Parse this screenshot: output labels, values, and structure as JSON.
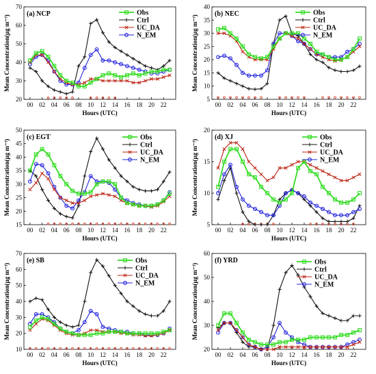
{
  "chart_data": [
    {
      "type": "line",
      "title": "(a) NCP",
      "xlabel": "Hours (UTC)",
      "ylabel": "Mean Concentration(µg m⁻³)",
      "ylim": [
        20,
        70
      ],
      "yticks": [
        20,
        30,
        40,
        50,
        60,
        70
      ],
      "xticks": [
        0,
        2,
        4,
        6,
        8,
        10,
        12,
        14,
        16,
        18,
        20,
        22
      ],
      "xtick_labels": [
        "00",
        "02",
        "04",
        "06",
        "08",
        "10",
        "12",
        "14",
        "16",
        "18",
        "20",
        "22"
      ],
      "x": [
        0,
        1,
        2,
        3,
        4,
        5,
        6,
        7,
        8,
        9,
        10,
        11,
        12,
        13,
        14,
        15,
        16,
        17,
        18,
        19,
        20,
        21,
        22,
        23
      ],
      "series": [
        {
          "name": "Obs",
          "values": [
            41,
            45,
            46,
            43,
            38,
            33,
            30,
            29,
            27,
            27,
            29,
            31,
            33,
            34,
            33,
            32,
            33,
            34,
            33,
            34,
            35,
            35,
            36,
            36
          ]
        },
        {
          "name": "Ctrl",
          "values": [
            37,
            35,
            30,
            27,
            25,
            24,
            23,
            24,
            38,
            43,
            61,
            63,
            56,
            51,
            48,
            46,
            44,
            42,
            40,
            38,
            37,
            36,
            38,
            41
          ]
        },
        {
          "name": "UC_DA",
          "values": [
            40,
            44,
            44,
            40,
            35,
            31,
            29,
            28,
            28,
            29,
            31,
            31,
            30,
            30,
            30,
            30,
            30,
            29,
            29,
            30,
            31,
            31,
            32,
            33
          ]
        },
        {
          "name": "N_EM",
          "values": [
            39,
            43,
            44,
            41,
            35,
            30,
            28,
            28,
            29,
            37,
            44,
            47,
            41,
            41,
            40,
            39,
            38,
            37,
            36,
            35,
            34,
            34,
            35,
            36
          ]
        }
      ],
      "markers_y": 20.8,
      "markers_x": [
        3,
        4,
        5,
        6,
        7,
        10,
        11,
        12,
        13,
        14
      ]
    },
    {
      "type": "line",
      "title": "(b) NEC",
      "xlabel": "Hours (UTC)",
      "ylabel": "Mean Concentration(µg m⁻³)",
      "ylim": [
        5,
        40
      ],
      "yticks": [
        5,
        10,
        15,
        20,
        25,
        30,
        35,
        40
      ],
      "xticks": [
        0,
        2,
        4,
        6,
        8,
        10,
        12,
        14,
        16,
        18,
        20,
        22
      ],
      "xtick_labels": [
        "00",
        "02",
        "04",
        "06",
        "08",
        "10",
        "12",
        "14",
        "16",
        "18",
        "20",
        "22"
      ],
      "x": [
        0,
        1,
        2,
        3,
        4,
        5,
        6,
        7,
        8,
        9,
        10,
        11,
        12,
        13,
        14,
        15,
        16,
        17,
        18,
        19,
        20,
        21,
        22,
        23
      ],
      "series": [
        {
          "name": "Obs",
          "values": [
            31.5,
            32,
            30,
            28,
            25,
            22,
            21,
            20.5,
            21,
            25,
            28,
            30,
            30,
            30,
            28,
            26,
            23,
            22,
            21,
            20,
            20,
            21,
            24,
            28
          ]
        },
        {
          "name": "Ctrl",
          "values": [
            15,
            13,
            12,
            11,
            10,
            9,
            8.8,
            9,
            11,
            26,
            35,
            36.5,
            30,
            29,
            26,
            22,
            20,
            19,
            17,
            16,
            15.5,
            15.5,
            16,
            17.5
          ]
        },
        {
          "name": "UC_DA",
          "values": [
            30,
            30,
            29,
            27,
            23,
            21,
            20,
            20,
            20,
            24,
            28,
            30,
            29,
            28,
            26,
            24,
            22,
            21,
            20,
            19.5,
            20,
            21,
            23,
            25
          ]
        },
        {
          "name": "N_EM",
          "values": [
            21,
            21.5,
            20.5,
            18,
            15,
            14,
            14,
            14,
            16,
            26,
            30,
            30,
            29,
            27,
            26,
            24,
            22,
            22,
            21,
            21,
            21,
            23,
            24,
            26
          ]
        }
      ],
      "markers_y": 5.7,
      "markers_x": [
        0,
        1,
        2,
        3,
        4,
        5,
        6,
        7,
        10,
        11,
        12,
        13,
        14,
        17,
        18,
        19,
        20,
        21,
        22,
        23
      ]
    },
    {
      "type": "line",
      "title": "(c) EGT",
      "xlabel": "Hours (UTC)",
      "ylabel": "Mean Concentration(µg m⁻³)",
      "ylim": [
        15,
        50
      ],
      "yticks": [
        15,
        20,
        25,
        30,
        35,
        40,
        45,
        50
      ],
      "xticks": [
        0,
        2,
        4,
        6,
        8,
        10,
        12,
        14,
        16,
        18,
        20,
        22
      ],
      "xtick_labels": [
        "00",
        "02",
        "04",
        "06",
        "08",
        "10",
        "12",
        "14",
        "16",
        "18",
        "20",
        "22"
      ],
      "x": [
        0,
        1,
        2,
        3,
        4,
        5,
        6,
        7,
        8,
        9,
        10,
        11,
        12,
        13,
        14,
        15,
        16,
        17,
        18,
        19,
        20,
        21,
        22,
        23
      ],
      "series": [
        {
          "name": "Obs",
          "values": [
            35,
            41,
            43,
            41,
            37,
            33,
            30,
            27.5,
            26.5,
            26.5,
            27,
            30,
            31,
            31,
            30,
            25,
            23,
            22.5,
            22,
            22,
            22,
            22.5,
            24,
            26.5
          ]
        },
        {
          "name": "Ctrl",
          "values": [
            35,
            33,
            28,
            24,
            21,
            19,
            18,
            17.5,
            22,
            33,
            42,
            47,
            43,
            39,
            36,
            33,
            31,
            29,
            28,
            27.5,
            27.5,
            28,
            31,
            34.5
          ]
        },
        {
          "name": "UC_DA",
          "values": [
            28,
            30.5,
            34,
            32,
            28,
            25,
            24,
            23,
            23,
            24,
            25.5,
            26,
            26.5,
            26,
            25.5,
            24,
            23,
            22.5,
            22,
            22,
            21.5,
            22,
            23.5,
            25.5
          ]
        },
        {
          "name": "N_EM",
          "values": [
            31,
            37.5,
            37,
            34,
            29,
            25,
            22,
            21,
            24,
            27,
            33,
            31,
            31,
            30.5,
            28,
            25,
            24,
            23,
            22.5,
            22,
            22,
            22.5,
            24,
            27
          ]
        }
      ],
      "markers_y": 15.3,
      "markers_x": [
        3,
        4,
        5,
        6,
        7,
        8,
        9,
        10,
        11,
        12,
        13,
        14,
        15,
        16,
        17,
        18,
        19,
        20,
        21,
        22,
        23
      ]
    },
    {
      "type": "line",
      "title": "(d) XJ",
      "xlabel": "Hours (UTC)",
      "ylabel": "Mean Concentration(µg m⁻³)",
      "ylim": [
        5,
        20
      ],
      "yticks": [
        5,
        10,
        15,
        20
      ],
      "xticks": [
        0,
        2,
        4,
        6,
        8,
        10,
        12,
        14,
        16,
        18,
        20,
        22
      ],
      "xtick_labels": [
        "00",
        "02",
        "04",
        "06",
        "08",
        "10",
        "12",
        "14",
        "16",
        "18",
        "20",
        "22"
      ],
      "x": [
        0,
        1,
        2,
        3,
        4,
        5,
        6,
        7,
        8,
        9,
        10,
        11,
        12,
        13,
        14,
        15,
        16,
        17,
        18,
        19,
        20,
        21,
        22,
        23
      ],
      "series": [
        {
          "name": "Obs",
          "values": [
            11,
            15,
            17,
            17,
            15,
            13,
            12.5,
            11,
            10,
            9,
            8.5,
            9,
            10,
            14,
            15,
            13.5,
            13,
            11,
            10,
            9,
            8.5,
            8.5,
            9,
            10
          ]
        },
        {
          "name": "Ctrl",
          "values": [
            9,
            12,
            14,
            10,
            7,
            5.5,
            5,
            5,
            5,
            6.5,
            9,
            10,
            10.5,
            10,
            9,
            8,
            7,
            6,
            5.5,
            5.5,
            5.5,
            5.5,
            6,
            8
          ]
        },
        {
          "name": "UC_DA",
          "values": [
            14,
            17,
            18,
            18,
            17,
            15,
            14,
            13,
            12,
            12.5,
            14,
            14,
            14.5,
            15,
            15,
            14.5,
            14,
            13.5,
            13,
            12.5,
            12,
            12,
            12.5,
            13
          ]
        },
        {
          "name": "N_EM",
          "values": [
            10,
            13,
            14.5,
            11,
            9,
            8,
            7.5,
            7,
            6.5,
            6.5,
            8,
            10,
            10.5,
            10,
            9.5,
            8.5,
            8,
            7.5,
            7,
            6.5,
            6.5,
            6.5,
            7,
            7.5
          ]
        }
      ],
      "markers_y": 5.1,
      "markers_x": [
        4,
        5,
        6,
        7,
        8,
        9,
        15,
        16,
        17,
        18,
        19,
        20,
        21,
        22
      ]
    },
    {
      "type": "line",
      "title": "(e) SB",
      "xlabel": "Hours (UTC)",
      "ylabel": "Mean Concentration(µg m⁻³)",
      "ylim": [
        10,
        70
      ],
      "yticks": [
        10,
        20,
        30,
        40,
        50,
        60,
        70
      ],
      "xticks": [
        0,
        2,
        4,
        6,
        8,
        10,
        12,
        14,
        16,
        18,
        20,
        22
      ],
      "xtick_labels": [
        "00",
        "02",
        "04",
        "06",
        "08",
        "10",
        "12",
        "14",
        "16",
        "18",
        "20",
        "22"
      ],
      "x": [
        0,
        1,
        2,
        3,
        4,
        5,
        6,
        7,
        8,
        9,
        10,
        11,
        12,
        13,
        14,
        15,
        16,
        17,
        18,
        19,
        20,
        21,
        22,
        23
      ],
      "series": [
        {
          "name": "Obs",
          "values": [
            24,
            28,
            30,
            29,
            26,
            23,
            21,
            20,
            19,
            19,
            19,
            20,
            20,
            21,
            21,
            21,
            20,
            20,
            20,
            20,
            20,
            20,
            21,
            22
          ]
        },
        {
          "name": "Ctrl",
          "values": [
            40,
            42,
            41,
            35,
            30,
            27,
            25,
            24,
            25,
            40,
            58,
            66,
            62,
            56,
            50,
            45,
            40,
            37,
            34,
            32,
            31,
            31,
            34,
            40
          ]
        },
        {
          "name": "UC_DA",
          "values": [
            22,
            26,
            29,
            28,
            25,
            22,
            20,
            19,
            19,
            20,
            22,
            22,
            21,
            21,
            21,
            20,
            20,
            19,
            19,
            18.5,
            18.5,
            19,
            20,
            22
          ]
        },
        {
          "name": "N_EM",
          "values": [
            26,
            32,
            32,
            30,
            27,
            23,
            21,
            20,
            22,
            27,
            34,
            32,
            24,
            23,
            22,
            21,
            21,
            20,
            20,
            19,
            19,
            19,
            20,
            23
          ]
        }
      ],
      "markers_y": 10.5,
      "markers_x": [
        0,
        1,
        2,
        3,
        4,
        5,
        6,
        7,
        8,
        9,
        10,
        11,
        12,
        13,
        14,
        15,
        16,
        17,
        18,
        19,
        20,
        21,
        22,
        23
      ]
    },
    {
      "type": "line",
      "title": "(f) YRD",
      "xlabel": "Hours (UTC)",
      "ylabel": "Mean Concentration(µg m⁻³)",
      "ylim": [
        20,
        60
      ],
      "yticks": [
        20,
        30,
        40,
        50,
        60
      ],
      "xticks": [
        0,
        2,
        4,
        6,
        8,
        10,
        12,
        14,
        16,
        18,
        20,
        22
      ],
      "xtick_labels": [
        "00",
        "02",
        "04",
        "06",
        "08",
        "10",
        "12",
        "14",
        "16",
        "18",
        "20",
        "22"
      ],
      "x": [
        0,
        1,
        2,
        3,
        4,
        5,
        6,
        7,
        8,
        9,
        10,
        11,
        12,
        13,
        14,
        15,
        16,
        17,
        18,
        19,
        20,
        21,
        22,
        23
      ],
      "series": [
        {
          "name": "Obs",
          "values": [
            30,
            35,
            35,
            31,
            27,
            24,
            23,
            22,
            22,
            22,
            23,
            23,
            24,
            24,
            24,
            25,
            25,
            25,
            25,
            25,
            26,
            26,
            27,
            28
          ]
        },
        {
          "name": "Ctrl",
          "values": [
            29,
            31,
            31,
            27,
            23,
            21,
            21,
            20,
            20,
            30,
            45,
            52,
            55,
            51,
            46,
            42,
            38,
            35,
            34,
            33,
            32,
            32,
            34,
            34
          ]
        },
        {
          "name": "UC_DA",
          "values": [
            28,
            31,
            31,
            28,
            25,
            22,
            21,
            20,
            20,
            20,
            21,
            21,
            21,
            21,
            21,
            21,
            21,
            21,
            21,
            21,
            21,
            21,
            22,
            23
          ]
        },
        {
          "name": "N_EM",
          "values": [
            27,
            31,
            31,
            28,
            25,
            22,
            21,
            20,
            21,
            25,
            31,
            27,
            25,
            23,
            22,
            21,
            21,
            21,
            21,
            21,
            21,
            22,
            23,
            24
          ]
        }
      ],
      "markers_y": 20.5,
      "markers_x": [
        14,
        15,
        16,
        17,
        18,
        19,
        20,
        21
      ]
    }
  ],
  "legend": {
    "items": [
      {
        "label": "Obs",
        "color": "#33dd22",
        "marker": "square"
      },
      {
        "label": "Ctrl",
        "color": "#111111",
        "marker": "plus"
      },
      {
        "label": "UC_DA",
        "color": "#bb2211",
        "marker": "x"
      },
      {
        "label": "N_EM",
        "color": "#2222dd",
        "marker": "circle"
      }
    ]
  },
  "colors": {
    "obs": "#33dd22",
    "ctrl": "#111111",
    "uc_da": "#bb2211",
    "n_em": "#2222dd",
    "marker_dots": "#cc3322"
  }
}
